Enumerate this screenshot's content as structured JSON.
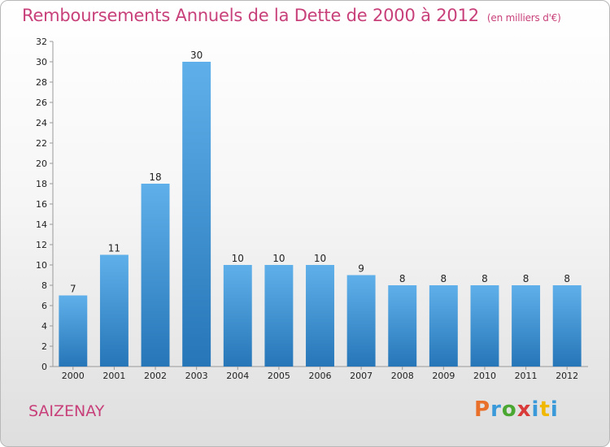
{
  "header": {
    "title": "Remboursements Annuels de la Dette de 2000 à 2012",
    "subtitle": "(en milliers d'€)"
  },
  "footer": {
    "commune": "SAIZENAY",
    "logo": "Proxiti"
  },
  "colors": {
    "title": "#c8407a",
    "bar_top": "#5fb0ea",
    "bar_bottom": "#2676b8",
    "logo_letters": [
      "#e8702a",
      "#3a9ad9",
      "#4aa832",
      "#d93a3a",
      "#3a9ad9",
      "#f0b800",
      "#3a9ad9"
    ]
  },
  "chart_data": {
    "type": "bar",
    "title": "Remboursements Annuels de la Dette de 2000 à 2012",
    "xlabel": "",
    "ylabel": "",
    "categories": [
      "2000",
      "2001",
      "2002",
      "2003",
      "2004",
      "2005",
      "2006",
      "2007",
      "2008",
      "2009",
      "2010",
      "2011",
      "2012"
    ],
    "values": [
      7,
      11,
      18,
      30,
      10,
      10,
      10,
      9,
      8,
      8,
      8,
      8,
      8
    ],
    "ylim": [
      0,
      32
    ],
    "yticks": [
      0,
      2,
      4,
      6,
      8,
      10,
      12,
      14,
      16,
      18,
      20,
      22,
      24,
      26,
      28,
      30,
      32
    ],
    "grid": false,
    "legend": "none"
  }
}
